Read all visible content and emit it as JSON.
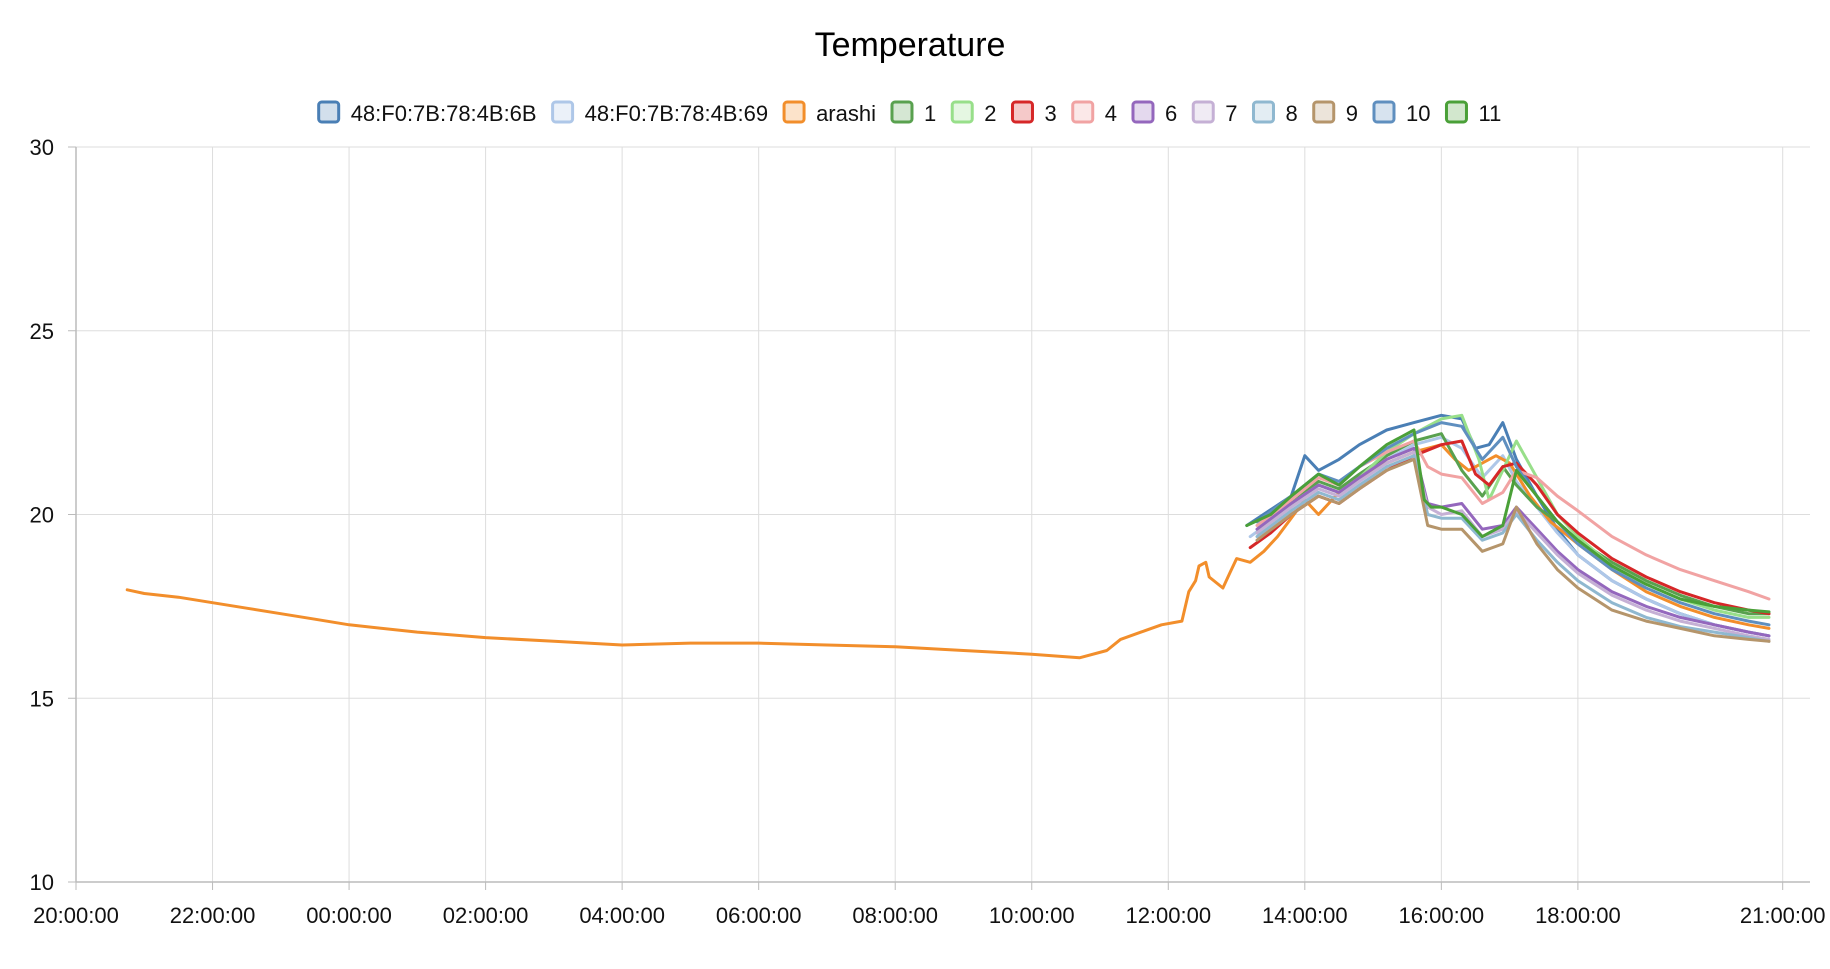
{
  "chart_data": {
    "type": "line",
    "title": "Temperature",
    "xlabel": "",
    "ylabel": "",
    "ylim": [
      10,
      30
    ],
    "y_ticks": [
      "10",
      "15",
      "20",
      "25",
      "30"
    ],
    "x_ticks": [
      "20:00:00",
      "22:00:00",
      "00:00:00",
      "02:00:00",
      "04:00:00",
      "06:00:00",
      "08:00:00",
      "10:00:00",
      "12:00:00",
      "14:00:00",
      "16:00:00",
      "18:00:00",
      "21:00:00"
    ],
    "x_tick_hours": [
      20,
      22,
      24,
      26,
      28,
      30,
      32,
      34,
      36,
      38,
      40,
      42,
      45
    ],
    "x_unit": "hours from 20:00:00 on the first day",
    "grid": true,
    "legend_position": "top-center",
    "series": [
      {
        "name": "48:F0:7B:78:4B:6B",
        "color": "#4a7fb5",
        "x": [
          37.15,
          37.8,
          38.0,
          38.2,
          38.5,
          38.8,
          39.2,
          39.6,
          40.0,
          40.3,
          40.5,
          40.7,
          40.9,
          41.1,
          41.4,
          41.7,
          42.0,
          42.5,
          43.0,
          43.5,
          44.0,
          44.5,
          44.8
        ],
        "y": [
          19.7,
          20.5,
          21.6,
          21.2,
          21.5,
          21.9,
          22.3,
          22.5,
          22.7,
          22.6,
          21.8,
          21.9,
          22.5,
          21.5,
          20.5,
          19.6,
          18.9,
          18.2,
          17.7,
          17.3,
          17.0,
          16.8,
          16.7
        ]
      },
      {
        "name": "48:F0:7B:78:4B:69",
        "color": "#aec7e8",
        "x": [
          37.2,
          37.8,
          38.2,
          38.5,
          38.8,
          39.2,
          39.6,
          40.0,
          40.3,
          40.6,
          40.9,
          41.1,
          41.4,
          41.7,
          42.0,
          42.5,
          43.0,
          43.5,
          44.0,
          44.5,
          44.8
        ],
        "y": [
          19.4,
          20.2,
          20.8,
          20.6,
          21.0,
          21.5,
          21.9,
          22.1,
          21.8,
          21.0,
          21.6,
          20.9,
          20.2,
          19.5,
          18.9,
          18.2,
          17.7,
          17.3,
          17.0,
          16.8,
          16.7
        ]
      },
      {
        "name": "arashi",
        "color": "#f28e2b",
        "x": [
          20.75,
          21.0,
          21.5,
          22.0,
          22.5,
          23.0,
          23.5,
          24.0,
          25.0,
          26.0,
          27.0,
          28.0,
          29.0,
          30.0,
          31.0,
          32.0,
          33.0,
          34.0,
          34.7,
          35.1,
          35.3,
          35.6,
          35.9,
          36.2,
          36.3,
          36.4,
          36.45,
          36.55,
          36.6,
          36.8,
          36.9,
          37.0,
          37.2,
          37.4,
          37.6,
          37.8,
          38.0,
          38.2,
          38.5,
          38.8,
          39.2,
          39.6,
          40.0,
          40.2,
          40.4,
          40.6,
          40.8,
          41.0,
          41.3,
          41.6,
          42.0,
          42.5,
          43.0,
          43.5,
          44.0,
          44.5,
          44.8
        ],
        "y": [
          17.95,
          17.85,
          17.75,
          17.6,
          17.45,
          17.3,
          17.15,
          17.0,
          16.8,
          16.65,
          16.55,
          16.45,
          16.5,
          16.5,
          16.45,
          16.4,
          16.3,
          16.2,
          16.1,
          16.3,
          16.6,
          16.8,
          17.0,
          17.1,
          17.9,
          18.2,
          18.6,
          18.7,
          18.3,
          18.0,
          18.4,
          18.8,
          18.7,
          19.0,
          19.4,
          19.9,
          20.4,
          20.0,
          20.6,
          21.0,
          21.4,
          21.7,
          21.9,
          21.5,
          21.2,
          21.4,
          21.6,
          21.4,
          20.5,
          19.8,
          19.2,
          18.5,
          17.9,
          17.5,
          17.2,
          17.0,
          16.9
        ]
      },
      {
        "name": "1",
        "color": "#59a14f",
        "x": [
          37.35,
          37.8,
          38.2,
          38.5,
          38.8,
          39.2,
          39.6,
          40.0,
          40.3,
          40.6,
          40.9,
          41.1,
          41.4,
          41.7,
          42.0,
          42.5,
          43.0,
          43.5,
          44.0,
          44.5,
          44.8
        ],
        "y": [
          19.6,
          20.3,
          20.9,
          20.7,
          21.1,
          21.6,
          22.0,
          22.2,
          21.2,
          20.5,
          21.3,
          20.8,
          20.2,
          19.8,
          19.3,
          18.7,
          18.2,
          17.8,
          17.5,
          17.3,
          17.3
        ]
      },
      {
        "name": "2",
        "color": "#98df8a",
        "x": [
          37.3,
          37.8,
          38.2,
          38.5,
          38.8,
          39.2,
          39.6,
          40.0,
          40.3,
          40.55,
          40.7,
          40.9,
          41.1,
          41.4,
          41.7,
          42.0,
          42.5,
          43.0,
          43.5,
          44.0,
          44.5,
          44.8
        ],
        "y": [
          19.5,
          20.3,
          20.8,
          20.6,
          21.0,
          21.7,
          22.2,
          22.6,
          22.7,
          21.5,
          20.4,
          21.2,
          22.0,
          21.0,
          20.0,
          19.4,
          18.6,
          18.1,
          17.7,
          17.4,
          17.2,
          17.2
        ]
      },
      {
        "name": "3",
        "color": "#d62728",
        "x": [
          37.2,
          37.5,
          37.8,
          38.2,
          38.5,
          38.8,
          39.2,
          39.6,
          40.0,
          40.3,
          40.5,
          40.7,
          40.9,
          41.1,
          41.4,
          41.7,
          42.0,
          42.5,
          43.0,
          43.5,
          44.0,
          44.5,
          44.8
        ],
        "y": [
          19.1,
          19.5,
          20.0,
          20.5,
          20.3,
          20.7,
          21.2,
          21.6,
          21.9,
          22.0,
          21.1,
          20.8,
          21.3,
          21.4,
          20.8,
          20.0,
          19.5,
          18.8,
          18.3,
          17.9,
          17.6,
          17.4,
          17.3
        ]
      },
      {
        "name": "4",
        "color": "#f1a3a3",
        "x": [
          37.3,
          37.8,
          38.2,
          38.5,
          38.8,
          39.2,
          39.6,
          39.8,
          40.0,
          40.3,
          40.6,
          40.9,
          41.1,
          41.4,
          41.7,
          42.0,
          42.5,
          43.0,
          43.5,
          44.0,
          44.5,
          44.8
        ],
        "y": [
          19.7,
          20.4,
          21.0,
          20.8,
          21.3,
          21.7,
          22.0,
          21.3,
          21.1,
          21.0,
          20.3,
          20.6,
          21.2,
          21.0,
          20.5,
          20.1,
          19.4,
          18.9,
          18.5,
          18.2,
          17.9,
          17.7
        ]
      },
      {
        "name": "6",
        "color": "#9467bd",
        "x": [
          37.3,
          37.8,
          38.2,
          38.5,
          38.8,
          39.2,
          39.6,
          39.8,
          40.0,
          40.3,
          40.6,
          40.9,
          41.1,
          41.4,
          41.7,
          42.0,
          42.5,
          43.0,
          43.5,
          44.0,
          44.5,
          44.8
        ],
        "y": [
          19.6,
          20.3,
          20.8,
          20.6,
          21.0,
          21.5,
          21.8,
          20.3,
          20.2,
          20.3,
          19.6,
          19.7,
          20.2,
          19.6,
          19.0,
          18.5,
          17.9,
          17.5,
          17.2,
          17.0,
          16.8,
          16.7
        ]
      },
      {
        "name": "7",
        "color": "#c5b0d5",
        "x": [
          37.3,
          37.8,
          38.2,
          38.5,
          38.8,
          39.2,
          39.6,
          39.8,
          40.0,
          40.3,
          40.6,
          40.9,
          41.1,
          41.4,
          41.7,
          42.0,
          42.5,
          43.0,
          43.5,
          44.0,
          44.5,
          44.8
        ],
        "y": [
          19.5,
          20.2,
          20.7,
          20.5,
          20.9,
          21.4,
          21.7,
          20.2,
          20.0,
          20.1,
          19.4,
          19.6,
          20.1,
          19.5,
          18.9,
          18.4,
          17.8,
          17.4,
          17.1,
          16.9,
          16.7,
          16.6
        ]
      },
      {
        "name": "8",
        "color": "#8fb8d0",
        "x": [
          37.3,
          37.8,
          38.2,
          38.5,
          38.8,
          39.2,
          39.6,
          39.8,
          40.0,
          40.3,
          40.6,
          40.9,
          41.1,
          41.4,
          41.7,
          42.0,
          42.5,
          43.0,
          43.5,
          44.0,
          44.5,
          44.8
        ],
        "y": [
          19.4,
          20.1,
          20.6,
          20.4,
          20.8,
          21.3,
          21.6,
          20.0,
          19.9,
          19.9,
          19.3,
          19.5,
          20.0,
          19.3,
          18.7,
          18.2,
          17.6,
          17.2,
          16.95,
          16.8,
          16.65,
          16.55
        ]
      },
      {
        "name": "9",
        "color": "#b5956b",
        "x": [
          37.3,
          37.8,
          38.2,
          38.5,
          38.8,
          39.2,
          39.6,
          39.8,
          40.0,
          40.3,
          40.6,
          40.9,
          41.1,
          41.4,
          41.7,
          42.0,
          42.5,
          43.0,
          43.5,
          44.0,
          44.5,
          44.8
        ],
        "y": [
          19.3,
          20.0,
          20.5,
          20.3,
          20.7,
          21.2,
          21.5,
          19.7,
          19.6,
          19.6,
          19.0,
          19.2,
          20.2,
          19.2,
          18.5,
          18.0,
          17.4,
          17.1,
          16.9,
          16.7,
          16.6,
          16.55
        ]
      },
      {
        "name": "10",
        "color": "#5f8fbf",
        "x": [
          37.3,
          37.8,
          38.2,
          38.5,
          38.8,
          39.2,
          39.6,
          40.0,
          40.3,
          40.6,
          40.9,
          41.1,
          41.4,
          41.7,
          42.0,
          42.5,
          43.0,
          43.5,
          44.0,
          44.5,
          44.8
        ],
        "y": [
          19.8,
          20.5,
          21.1,
          20.9,
          21.3,
          21.8,
          22.2,
          22.5,
          22.4,
          21.5,
          22.1,
          21.3,
          20.5,
          19.8,
          19.2,
          18.5,
          18.0,
          17.6,
          17.3,
          17.1,
          17.0
        ]
      },
      {
        "name": "11",
        "color": "#4aa038",
        "x": [
          37.15,
          37.5,
          37.8,
          38.2,
          38.5,
          38.8,
          39.2,
          39.6,
          39.75,
          39.85,
          40.0,
          40.3,
          40.6,
          40.9,
          41.1,
          41.4,
          41.7,
          42.0,
          42.5,
          43.0,
          43.5,
          44.0,
          44.5,
          44.8
        ],
        "y": [
          19.7,
          20.0,
          20.5,
          21.1,
          20.8,
          21.3,
          21.9,
          22.3,
          20.4,
          20.2,
          20.2,
          20.0,
          19.4,
          19.7,
          21.2,
          20.5,
          19.8,
          19.3,
          18.6,
          18.1,
          17.7,
          17.5,
          17.4,
          17.35
        ]
      }
    ]
  }
}
